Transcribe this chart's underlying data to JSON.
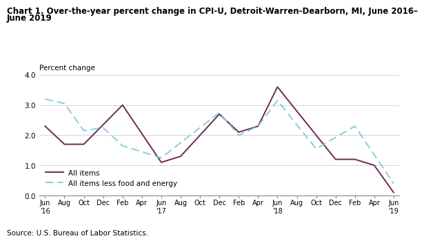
{
  "title_line1": "Chart 1. Over-the-year percent change in CPI-U, Detroit-Warren-Dearborn, MI, June 2016–",
  "title_line2": "June 2019",
  "ylabel": "Percent change",
  "source": "Source: U.S. Bureau of Labor Statistics.",
  "x_labels": [
    "Jun\n'16",
    "Aug",
    "Oct",
    "Dec",
    "Feb",
    "Apr",
    "Jun\n'17",
    "Aug",
    "Oct",
    "Dec",
    "Feb",
    "Apr",
    "Jun\n'18",
    "Aug",
    "Oct",
    "Dec",
    "Feb",
    "Apr",
    "Jun\n'19"
  ],
  "all_items_x": [
    0,
    1,
    2,
    4,
    6,
    7,
    9,
    10,
    11,
    12,
    15,
    16,
    17,
    18
  ],
  "all_items_y": [
    2.3,
    1.7,
    1.7,
    3.0,
    1.1,
    1.3,
    2.7,
    2.1,
    2.3,
    3.6,
    1.2,
    1.2,
    1.0,
    0.1
  ],
  "less_x": [
    0,
    1,
    2,
    3,
    4,
    6,
    9,
    10,
    11,
    12,
    14,
    16,
    18
  ],
  "less_y": [
    3.2,
    3.05,
    2.15,
    2.25,
    1.65,
    1.25,
    2.75,
    2.0,
    2.3,
    3.15,
    1.55,
    2.3,
    0.4
  ],
  "all_items_color": "#6b2a4e",
  "all_items_less_color": "#89cce0",
  "ylim": [
    0.0,
    4.0
  ],
  "yticks": [
    0.0,
    1.0,
    2.0,
    3.0,
    4.0
  ],
  "background_color": "#ffffff",
  "grid_color": "#cccccc"
}
